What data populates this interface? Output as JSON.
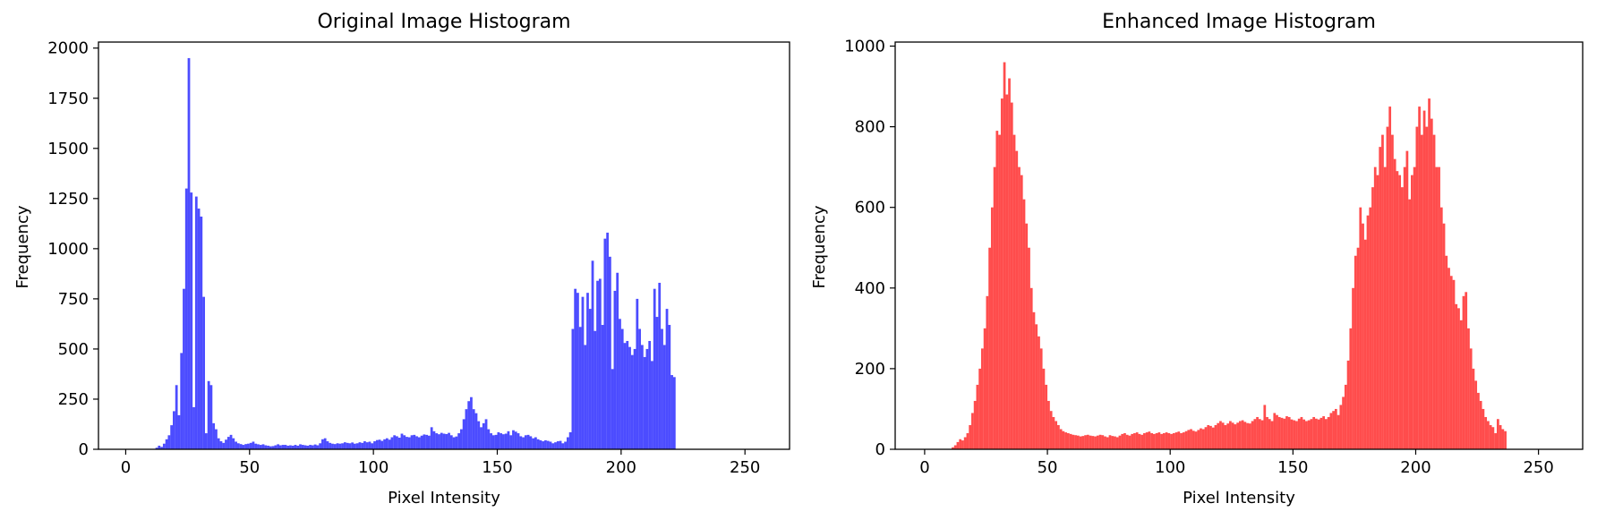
{
  "figure": {
    "background": "#ffffff"
  },
  "chart_data": [
    {
      "type": "bar",
      "title": "Original Image Histogram",
      "xlabel": "Pixel Intensity",
      "ylabel": "Frequency",
      "xlim": [
        -11,
        268
      ],
      "ylim": [
        0,
        2030
      ],
      "xticks": [
        0,
        50,
        100,
        150,
        200,
        250
      ],
      "yticks": [
        0,
        250,
        500,
        750,
        1000,
        1250,
        1500,
        1750,
        2000
      ],
      "grid": false,
      "color": "#0000ff",
      "alpha": 0.7,
      "bin_width": 1,
      "x_start": 0,
      "values": [
        0,
        0,
        0,
        0,
        0,
        0,
        0,
        0,
        0,
        0,
        0,
        0,
        8,
        18,
        12,
        28,
        50,
        70,
        120,
        190,
        320,
        170,
        480,
        800,
        1300,
        1950,
        1280,
        210,
        1260,
        1200,
        1160,
        760,
        80,
        340,
        320,
        130,
        100,
        55,
        40,
        32,
        48,
        62,
        72,
        55,
        38,
        30,
        26,
        22,
        26,
        28,
        32,
        38,
        28,
        25,
        22,
        25,
        20,
        18,
        15,
        16,
        20,
        25,
        20,
        22,
        22,
        18,
        20,
        18,
        22,
        18,
        25,
        22,
        20,
        18,
        22,
        20,
        24,
        20,
        30,
        50,
        55,
        40,
        32,
        28,
        26,
        30,
        28,
        30,
        35,
        32,
        30,
        34,
        28,
        30,
        35,
        32,
        40,
        35,
        38,
        30,
        40,
        46,
        48,
        42,
        50,
        55,
        48,
        60,
        70,
        65,
        58,
        78,
        70,
        62,
        60,
        70,
        72,
        65,
        60,
        68,
        74,
        72,
        68,
        110,
        90,
        80,
        75,
        82,
        78,
        76,
        82,
        70,
        60,
        64,
        80,
        100,
        150,
        200,
        240,
        260,
        200,
        180,
        140,
        110,
        130,
        150,
        100,
        80,
        70,
        72,
        85,
        80,
        75,
        78,
        90,
        70,
        95,
        88,
        80,
        65,
        60,
        70,
        72,
        65,
        55,
        60,
        50,
        45,
        40,
        45,
        42,
        38,
        30,
        35,
        40,
        42,
        30,
        38,
        60,
        85,
        600,
        800,
        780,
        610,
        760,
        520,
        780,
        700,
        940,
        590,
        840,
        850,
        620,
        1050,
        1080,
        960,
        400,
        790,
        880,
        650,
        600,
        530,
        540,
        510,
        470,
        500,
        750,
        600,
        520,
        460,
        500,
        540,
        440,
        800,
        660,
        830,
        600,
        520,
        700,
        620,
        370,
        360,
        0,
        0,
        0,
        0,
        0,
        0,
        0,
        0,
        0,
        0,
        0,
        0,
        0,
        0,
        0,
        0,
        0,
        0,
        0
      ]
    },
    {
      "type": "bar",
      "title": "Enhanced Image Histogram",
      "xlabel": "Pixel Intensity",
      "ylabel": "Frequency",
      "xlim": [
        -12,
        268
      ],
      "ylim": [
        0,
        1010
      ],
      "xticks": [
        0,
        50,
        100,
        150,
        200,
        250
      ],
      "yticks": [
        0,
        200,
        400,
        600,
        800,
        1000
      ],
      "grid": false,
      "color": "#ff0000",
      "alpha": 0.7,
      "bin_width": 1,
      "x_start": 0,
      "values": [
        0,
        0,
        0,
        0,
        0,
        0,
        0,
        0,
        0,
        0,
        0,
        5,
        10,
        18,
        25,
        22,
        30,
        40,
        60,
        90,
        120,
        160,
        200,
        250,
        300,
        380,
        500,
        600,
        700,
        790,
        780,
        870,
        960,
        880,
        920,
        860,
        780,
        740,
        700,
        680,
        620,
        560,
        500,
        400,
        340,
        310,
        280,
        250,
        200,
        160,
        120,
        95,
        80,
        70,
        60,
        50,
        45,
        42,
        40,
        38,
        36,
        35,
        34,
        32,
        33,
        35,
        36,
        34,
        33,
        32,
        34,
        36,
        35,
        32,
        30,
        35,
        33,
        32,
        30,
        34,
        38,
        40,
        36,
        34,
        38,
        40,
        42,
        38,
        36,
        40,
        42,
        44,
        40,
        38,
        40,
        42,
        38,
        40,
        42,
        40,
        38,
        40,
        42,
        44,
        40,
        42,
        45,
        48,
        50,
        46,
        44,
        48,
        52,
        50,
        55,
        60,
        58,
        54,
        60,
        65,
        70,
        66,
        60,
        64,
        70,
        66,
        62,
        66,
        70,
        72,
        68,
        65,
        64,
        70,
        75,
        80,
        75,
        72,
        110,
        80,
        75,
        70,
        90,
        85,
        80,
        78,
        76,
        82,
        80,
        74,
        72,
        70,
        76,
        80,
        74,
        70,
        72,
        75,
        80,
        76,
        74,
        78,
        82,
        75,
        80,
        90,
        95,
        100,
        85,
        110,
        130,
        160,
        220,
        300,
        400,
        480,
        500,
        600,
        560,
        520,
        580,
        600,
        650,
        700,
        680,
        750,
        780,
        700,
        800,
        850,
        780,
        720,
        690,
        680,
        650,
        700,
        740,
        620,
        680,
        700,
        800,
        850,
        780,
        840,
        800,
        870,
        820,
        780,
        700,
        700,
        600,
        560,
        480,
        450,
        430,
        420,
        360,
        350,
        320,
        380,
        390,
        300,
        250,
        200,
        170,
        140,
        120,
        100,
        80,
        70,
        60,
        55,
        40,
        75,
        60,
        50,
        45,
        0,
        0,
        0,
        0,
        0,
        0,
        0,
        0,
        0,
        0,
        0,
        0,
        0,
        0,
        0,
        0,
        0,
        0,
        0,
        0
      ]
    }
  ]
}
